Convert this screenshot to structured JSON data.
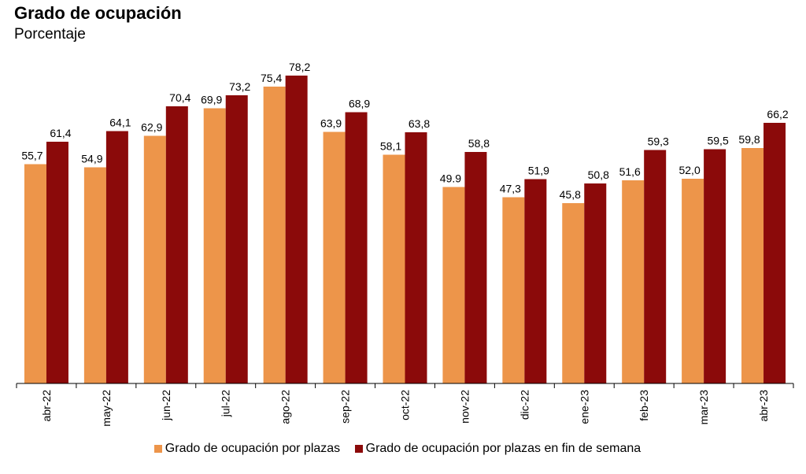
{
  "chart_data": {
    "type": "bar",
    "title": "Grado de ocupación",
    "subtitle": "Porcentaje",
    "xlabel": "",
    "ylabel": "",
    "ylim": [
      0,
      80
    ],
    "grid": false,
    "legend_position": "bottom",
    "categories": [
      "abr-22",
      "may-22",
      "jun-22",
      "jul-22",
      "ago-22",
      "sep-22",
      "oct-22",
      "nov-22",
      "dic-22",
      "ene-23",
      "feb-23",
      "mar-23",
      "abr-23"
    ],
    "series": [
      {
        "name": "Grado de ocupación por plazas",
        "color": "#ED954A",
        "values": [
          55.7,
          54.9,
          62.9,
          69.9,
          75.4,
          63.9,
          58.1,
          49.9,
          47.3,
          45.8,
          51.6,
          52.0,
          59.8
        ],
        "labels": [
          "55,7",
          "54,9",
          "62,9",
          "69,9",
          "75,4",
          "63,9",
          "58,1",
          "49.9",
          "47,3",
          "45,8",
          "51,6",
          "52,0",
          "59,8"
        ]
      },
      {
        "name": "Grado de ocupación por plazas en fin de semana",
        "color": "#8B0A0A",
        "values": [
          61.4,
          64.1,
          70.4,
          73.2,
          78.2,
          68.9,
          63.8,
          58.8,
          51.9,
          50.8,
          59.3,
          59.5,
          66.2
        ],
        "labels": [
          "61,4",
          "64,1",
          "70,4",
          "73,2",
          "78,2",
          "68,9",
          "63,8",
          "58,8",
          "51,9",
          "50,8",
          "59,3",
          "59,5",
          "66,2"
        ]
      }
    ]
  }
}
